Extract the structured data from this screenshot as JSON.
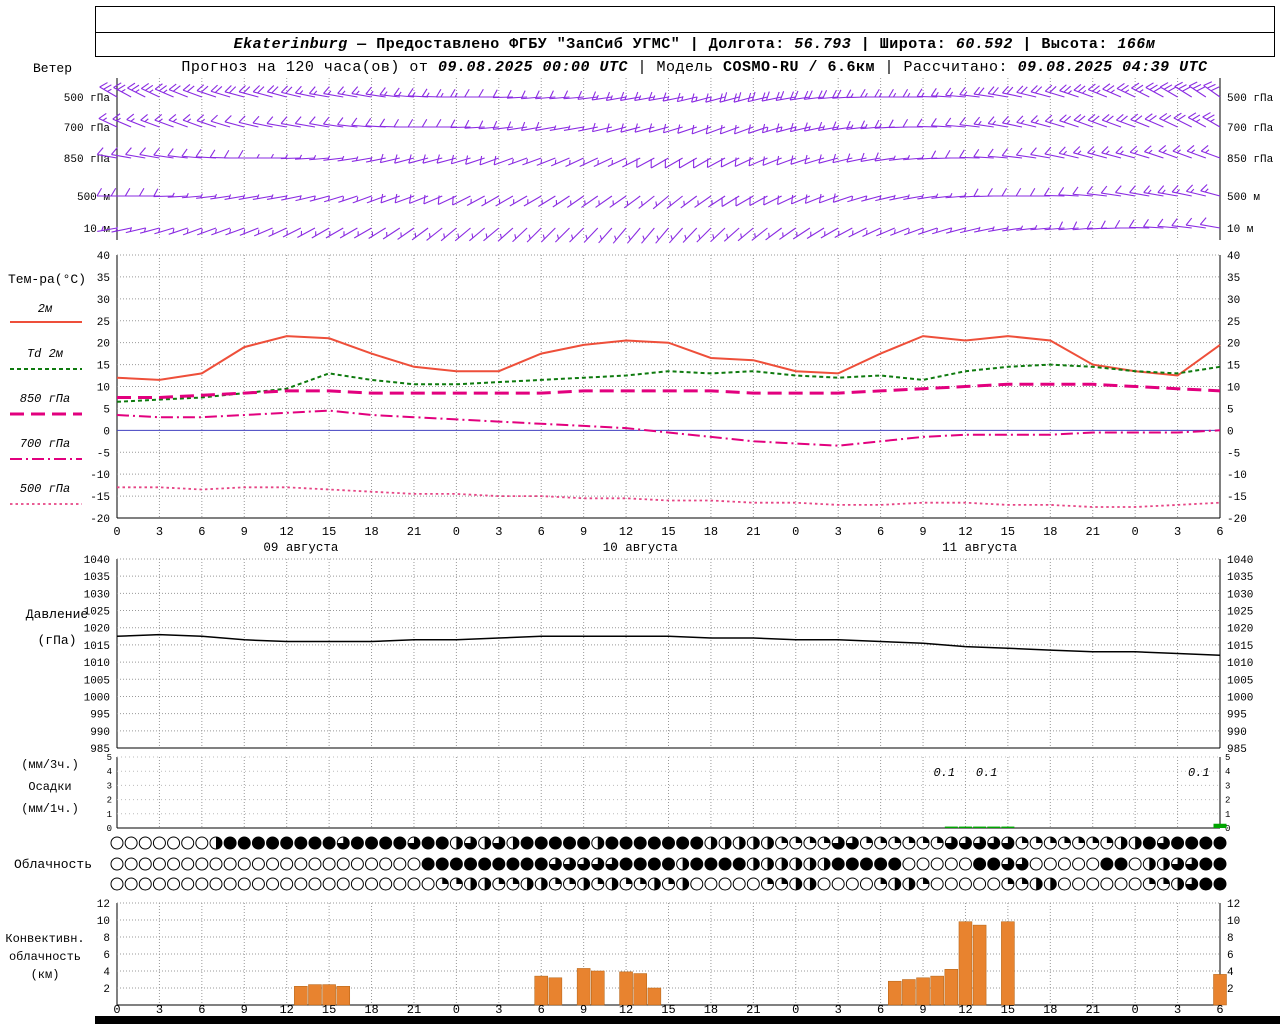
{
  "header1": {
    "station": "Ekaterinburg",
    "dash": " — ",
    "provider": "Предоставлено ФГБУ \"ЗапСиб УГМС\"",
    "sep": " | ",
    "lon_label": "Долгота: ",
    "lon": "56.793",
    "lat_label": "Широта: ",
    "lat": "60.592",
    "alt_label": "Высота: ",
    "alt": "166м"
  },
  "header2": {
    "forecast_label": "Прогноз на 120 часа(ов) от ",
    "run_time": "09.08.2025 00:00 UTC",
    "sep": " | ",
    "model_label": "Модель ",
    "model": "COSMO-RU / 6.6км",
    "calc_label": "Рассчитано: ",
    "calc_time": "09.08.2025 04:39 UTC"
  },
  "chart_data": {
    "type": "meteogram",
    "x": {
      "total_h": 78,
      "step_h": 3,
      "hour_labels": [
        0,
        3,
        6,
        9,
        12,
        15,
        18,
        21,
        0,
        3,
        6,
        9,
        12,
        15,
        18,
        21,
        0,
        3,
        6,
        9,
        12,
        15,
        18,
        21,
        0,
        3,
        6
      ],
      "date_labels": [
        {
          "text": "09 августа",
          "center_h": 13
        },
        {
          "text": "10 августа",
          "center_h": 37
        },
        {
          "text": "11 августа",
          "center_h": 61
        }
      ]
    },
    "wind": {
      "title": "Ветер",
      "color": "#8a2be2",
      "levels": [
        {
          "label": "500 гПа",
          "dir": [
            300,
            295,
            290,
            285,
            285,
            280,
            280,
            275,
            270,
            270,
            265,
            265,
            260,
            260,
            255,
            255,
            260,
            265,
            270,
            270,
            275,
            280,
            285,
            290,
            295,
            300,
            305
          ],
          "spd": [
            25,
            25,
            20,
            20,
            20,
            15,
            15,
            15,
            15,
            10,
            10,
            10,
            15,
            15,
            15,
            20,
            20,
            20,
            15,
            15,
            15,
            20,
            20,
            25,
            25,
            30,
            30
          ]
        },
        {
          "label": "700 гПа",
          "dir": [
            295,
            290,
            290,
            285,
            280,
            280,
            275,
            270,
            270,
            265,
            260,
            260,
            255,
            255,
            250,
            250,
            255,
            260,
            265,
            270,
            275,
            280,
            285,
            290,
            290,
            295,
            300
          ],
          "spd": [
            15,
            15,
            15,
            10,
            10,
            10,
            10,
            10,
            10,
            10,
            10,
            5,
            10,
            10,
            10,
            10,
            15,
            15,
            15,
            10,
            10,
            15,
            15,
            20,
            20,
            20,
            25
          ]
        },
        {
          "label": "850 гПа",
          "dir": [
            280,
            280,
            275,
            270,
            270,
            265,
            260,
            255,
            255,
            250,
            250,
            245,
            245,
            240,
            240,
            245,
            250,
            255,
            260,
            265,
            270,
            275,
            280,
            285,
            285,
            290,
            290
          ],
          "spd": [
            10,
            10,
            10,
            10,
            5,
            5,
            5,
            10,
            10,
            10,
            5,
            5,
            5,
            10,
            10,
            10,
            10,
            10,
            10,
            5,
            10,
            10,
            10,
            15,
            15,
            15,
            15
          ]
        },
        {
          "label": "500 м",
          "dir": [
            270,
            270,
            265,
            260,
            260,
            255,
            250,
            250,
            245,
            240,
            240,
            235,
            235,
            230,
            235,
            240,
            245,
            250,
            255,
            260,
            265,
            270,
            270,
            275,
            280,
            280,
            285
          ],
          "spd": [
            10,
            10,
            5,
            5,
            5,
            5,
            5,
            10,
            10,
            5,
            5,
            5,
            5,
            5,
            5,
            10,
            10,
            10,
            5,
            5,
            5,
            10,
            10,
            10,
            10,
            15,
            15
          ]
        },
        {
          "label": "10 м",
          "dir": [
            260,
            255,
            250,
            250,
            245,
            240,
            240,
            235,
            230,
            230,
            225,
            225,
            220,
            220,
            225,
            230,
            235,
            240,
            245,
            250,
            255,
            260,
            265,
            265,
            270,
            275,
            280
          ],
          "spd": [
            5,
            5,
            5,
            3,
            3,
            5,
            5,
            5,
            5,
            3,
            3,
            3,
            3,
            5,
            5,
            5,
            5,
            5,
            3,
            3,
            5,
            5,
            5,
            10,
            10,
            10,
            10
          ]
        }
      ]
    },
    "temperature": {
      "title": "Тем-ра(°C)",
      "ylim": [
        -20,
        40
      ],
      "tick_step": 5,
      "zero_line_color": "#4040c0",
      "series": [
        {
          "name": "2м",
          "color": "#ee4f3a",
          "dash": "",
          "width": 2,
          "values": [
            12,
            11.5,
            13,
            19,
            21.5,
            21,
            17.5,
            14.5,
            13.5,
            13.5,
            17.5,
            19.5,
            20.5,
            20,
            16.5,
            16,
            13.5,
            13,
            17.5,
            21.5,
            20.5,
            21.5,
            20.5,
            15,
            13.5,
            12.5,
            19.5
          ]
        },
        {
          "name": "Td 2м",
          "color": "#0e7a0e",
          "dash": "4,3",
          "width": 2,
          "values": [
            6.5,
            7,
            7.5,
            8.5,
            9.5,
            13,
            11.5,
            10.5,
            10.5,
            11,
            11.5,
            12,
            12.5,
            13.5,
            13,
            13.5,
            12.5,
            12,
            12.5,
            11.5,
            13.5,
            14.5,
            15,
            14.5,
            13.5,
            13,
            14.5
          ]
        },
        {
          "name": "850 гПа",
          "color": "#e2007e",
          "dash": "14,7",
          "width": 3,
          "values": [
            7.5,
            7.5,
            8,
            8.5,
            9,
            9,
            8.5,
            8.5,
            8.5,
            8.5,
            8.5,
            9,
            9,
            9,
            9,
            8.5,
            8.5,
            8.5,
            9,
            9.5,
            10,
            10.5,
            10.5,
            10.5,
            10,
            9.5,
            9
          ]
        },
        {
          "name": "700 гПа",
          "color": "#e2007e",
          "dash": "12,4,2,4",
          "width": 2,
          "values": [
            3.5,
            3,
            3,
            3.5,
            4,
            4.5,
            3.5,
            3,
            2.5,
            2,
            1.5,
            1,
            0.5,
            -0.5,
            -1.5,
            -2.5,
            -3,
            -3.5,
            -2.5,
            -1.5,
            -1,
            -1,
            -1,
            -0.5,
            -0.5,
            -0.5,
            0
          ]
        },
        {
          "name": "500 гПа",
          "color": "#e64585",
          "dash": "2.5,3",
          "width": 1.8,
          "values": [
            -13,
            -13,
            -13.5,
            -13,
            -13,
            -13.5,
            -14,
            -14.5,
            -14.5,
            -15,
            -15,
            -15.5,
            -15.5,
            -16,
            -16,
            -16.5,
            -16.5,
            -17,
            -17,
            -16.5,
            -16.5,
            -17,
            -17,
            -17.5,
            -17.5,
            -17,
            -16.5
          ]
        }
      ]
    },
    "pressure": {
      "title_lines": [
        "Давление",
        "(гПа)"
      ],
      "ylim": [
        985,
        1040
      ],
      "tick_step": 5,
      "color": "#000000",
      "values": [
        1017.5,
        1018,
        1017.5,
        1016.5,
        1016,
        1016,
        1016,
        1016.5,
        1016.5,
        1017,
        1017.5,
        1017.5,
        1017.5,
        1017.5,
        1017,
        1017,
        1016.5,
        1016.5,
        1016,
        1015.5,
        1014.5,
        1014,
        1013.5,
        1013,
        1013,
        1012.5,
        1012
      ]
    },
    "precip": {
      "title_lines": [
        "(мм/3ч.)",
        "Осадки",
        "(мм/1ч.)"
      ],
      "ylim": [
        0,
        5
      ],
      "color": "#00a400",
      "bars": [
        {
          "h": 59,
          "v": 0.1
        },
        {
          "h": 60,
          "v": 0.1
        },
        {
          "h": 61,
          "v": 0.1
        },
        {
          "h": 62,
          "v": 0.1
        },
        {
          "h": 63,
          "v": 0.1
        },
        {
          "h": 78,
          "v": 0.3
        }
      ],
      "labels": [
        {
          "h": 58.5,
          "text": "0.1"
        },
        {
          "h": 61.5,
          "text": "0.1"
        },
        {
          "h": 76.5,
          "text": "0.1"
        }
      ]
    },
    "cloud": {
      "title": "Облачность",
      "levels_note": "fill quarters 0-4 per hour 0..78",
      "rows": [
        "0000000244444444344443442323244444244444442222211113311111133333111111122434444",
        "0000000000000000000000444444444333334444244442222224444400000443300000440223344",
        "0000000000000000000000011221122112121121200000112200001221000001122000000112344"
      ]
    },
    "convective": {
      "title_lines": [
        "Конвективн.",
        "облачность",
        "(км)"
      ],
      "ylim": [
        0,
        12
      ],
      "tick_step": 2,
      "color": "#e8832f",
      "bars": [
        {
          "h": 13,
          "v": 2.2
        },
        {
          "h": 14,
          "v": 2.4
        },
        {
          "h": 15,
          "v": 2.4
        },
        {
          "h": 16,
          "v": 2.2
        },
        {
          "h": 30,
          "v": 3.4
        },
        {
          "h": 31,
          "v": 3.2
        },
        {
          "h": 33,
          "v": 4.3
        },
        {
          "h": 34,
          "v": 4.0
        },
        {
          "h": 36,
          "v": 3.9
        },
        {
          "h": 37,
          "v": 3.7
        },
        {
          "h": 38,
          "v": 2.0
        },
        {
          "h": 55,
          "v": 2.8
        },
        {
          "h": 56,
          "v": 3.0
        },
        {
          "h": 57,
          "v": 3.2
        },
        {
          "h": 58,
          "v": 3.4
        },
        {
          "h": 59,
          "v": 4.2
        },
        {
          "h": 60,
          "v": 9.8
        },
        {
          "h": 61,
          "v": 9.4
        },
        {
          "h": 63,
          "v": 9.8
        },
        {
          "h": 78,
          "v": 3.6
        }
      ]
    }
  }
}
